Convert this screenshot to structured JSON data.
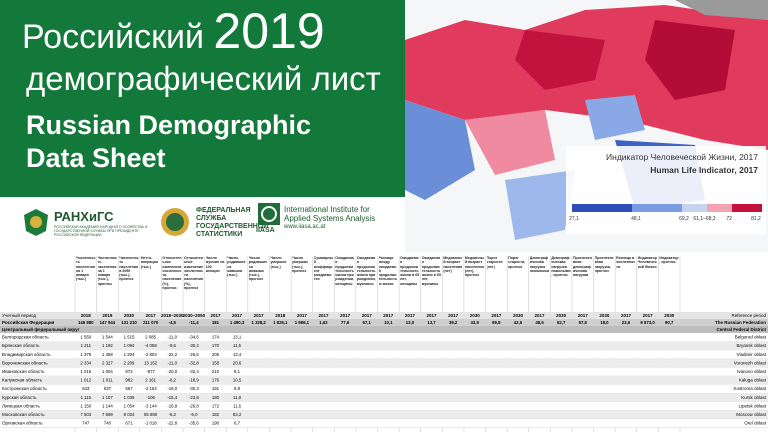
{
  "header": {
    "title_ru_1": "Российский",
    "year": "2019",
    "title_ru_2": "демографический лист",
    "title_en_1": "Russian Demographic",
    "title_en_2": "Data Sheet"
  },
  "logos": {
    "ranepa": "РАНХиГС",
    "ranepa_sub": "РОССИЙСКАЯ АКАДЕМИЯ НАРОДНОГО ХОЗЯЙСТВА И ГОСУДАРСТВЕННОЙ СЛУЖБЫ ПРИ ПРЕЗИДЕНТЕ РОССИЙСКОЙ ФЕДЕРАЦИИ",
    "rosstat_1": "ФЕДЕРАЛЬНАЯ",
    "rosstat_2": "СЛУЖБА",
    "rosstat_3": "ГОСУДАРСТВЕННОЙ",
    "rosstat_4": "СТАТИСТИКИ",
    "iiasa_1": "International Institute for",
    "iiasa_2": "Applied Systems Analysis",
    "iiasa_abbr": "IIASA",
    "iiasa_url": "www.iiasa.ac.at"
  },
  "legend": {
    "title_ru": "Индикатор Человеческой Жизни, 2017",
    "title_en": "Human Life Indicator, 2017",
    "labels": [
      "27,1",
      "48,1",
      "69,2",
      "61,1–68,3",
      "72",
      "81,2"
    ]
  },
  "table": {
    "headers": [
      "Численность населения на 1 января (тыс.)",
      "Численность населения на 1 января (тыс.), прогноз",
      "Численность населения в 2050 (тыс.), прогноз",
      "Нетто-миграция (тыс.)",
      "Относительное изменение численности населения (%), прогноз",
      "Относительное изменение численности населения (%), прогноз",
      "Число мужчин на 100 женщин",
      "Число родившихся живыми (тыс.)",
      "Число родившихся живыми (тыс.), прогноз",
      "Число умерших (тыс.)",
      "Число умерших (тыс.), прогноз",
      "Суммарный коэффициент рождаемости",
      "Ожидаемая продолжительность жизни при рождении, женщины",
      "Ожидаемая продолжительность жизни при рождении, мужчины",
      "Разница между ожидаемой продолжительностью жизни",
      "Ожидаемая продолжительность жизни в 65 лет, женщины",
      "Ожидаемая продолжительность жизни в 65 лет, мужчины",
      "Медианный возраст населения (лет)",
      "Медианный возраст населения (лет), прогноз",
      "Порог старости (лет)",
      "Порог старости, прогноз",
      "Демографическая нагрузка пожилыми",
      "Демографическая нагрузка пожилыми, прогноз",
      "Проспективная демографическая нагрузка",
      "Проспективная нагрузка, прогноз",
      "Разница в численности",
      "Индикатор Человеческой Жизни",
      "Индикатор, прогноз"
    ],
    "period_label": "Учетный период",
    "period_label_en": "Reference period",
    "years": [
      "2018",
      "2019",
      "2030",
      "2017",
      "2018–2030",
      "2030–2050",
      "2017",
      "2017",
      "2017",
      "2018",
      "2017",
      "2017",
      "2017",
      "2017",
      "2017",
      "2017",
      "2017",
      "2017",
      "2030",
      "2017",
      "2030",
      "2017",
      "2030",
      "2017",
      "2030",
      "2017",
      "2017",
      "2030"
    ],
    "country": {
      "name": "Российская Федерация",
      "name_en": "The Russian Federation",
      "values": [
        "146 880",
        "147 944",
        "131 210",
        "211 070",
        "-4,5",
        "-11,4",
        "181",
        "1 490,3",
        "1 328,2",
        "1 826,1",
        "1 986,1",
        "1,62",
        "77,6",
        "67,1",
        "10,1",
        "13,0",
        "13,7",
        "39,2",
        "43,9",
        "69,8",
        "42,6",
        "48,6",
        "82,7",
        "57,6",
        "18,0",
        "23,6",
        "9 873,0",
        "90,7"
      ]
    },
    "district": {
      "name": "Центральный федеральный округ",
      "name_en": "Central Federal District"
    },
    "rows": [
      {
        "name": "Белгородская область",
        "name_en": "Belgorod oblast",
        "values": [
          "1 550",
          "1 544",
          "1 515",
          "2 085",
          "-11,0",
          "-34,6",
          "174",
          "13,1"
        ]
      },
      {
        "name": "Брянская область",
        "name_en": "Bryansk oblast",
        "values": [
          "1 211",
          "1 192",
          "1 094",
          "-4 058",
          "-9,6",
          "-30,4",
          "170",
          "11,5"
        ]
      },
      {
        "name": "Владимирская область",
        "name_en": "Vladimir oblast",
        "values": [
          "1 379",
          "1 358",
          "1 204",
          "-2 803",
          "-22,2",
          "-26,6",
          "205",
          "13,4"
        ]
      },
      {
        "name": "Воронежская область",
        "name_en": "Voronezh oblast",
        "values": [
          "2 334",
          "2 327",
          "2 209",
          "13 152",
          "-11,0",
          "-32,8",
          "158",
          "20,6"
        ]
      },
      {
        "name": "Ивановская область",
        "name_en": "Ivanovo oblast",
        "values": [
          "1 015",
          "1 004",
          "872",
          "-977",
          "-20,0",
          "-32,4",
          "210",
          "9,1"
        ]
      },
      {
        "name": "Калужская область",
        "name_en": "Kaluga oblast",
        "values": [
          "1 012",
          "1 011",
          "982",
          "2 161",
          "-8,2",
          "-18,9",
          "176",
          "10,5"
        ]
      },
      {
        "name": "Костромская область",
        "name_en": "Kostroma oblast",
        "values": [
          "643",
          "637",
          "567",
          "-2 154",
          "-16,0",
          "-30,3",
          "191",
          "6,9"
        ]
      },
      {
        "name": "Курская область",
        "name_en": "Kursk oblast",
        "values": [
          "1 115",
          "1 107",
          "1 039",
          "-106",
          "-15,4",
          "-23,8",
          "180",
          "11,8"
        ]
      },
      {
        "name": "Липецкая область",
        "name_en": "Lipetsk oblast",
        "values": [
          "1 150",
          "1 144",
          "1 054",
          "-3 144",
          "-16,9",
          "-26,8",
          "172",
          "11,6"
        ]
      },
      {
        "name": "Московская область",
        "name_en": "Moscow oblast",
        "values": [
          "7 503",
          "7 599",
          "8 024",
          "55 890",
          "-5,2",
          "-6,0",
          "182",
          "83,2"
        ]
      },
      {
        "name": "Орловская область",
        "name_en": "Orel oblast",
        "values": [
          "747",
          "740",
          "671",
          "-1 018",
          "-22,8",
          "-35,6",
          "190",
          "6,7"
        ]
      }
    ]
  }
}
